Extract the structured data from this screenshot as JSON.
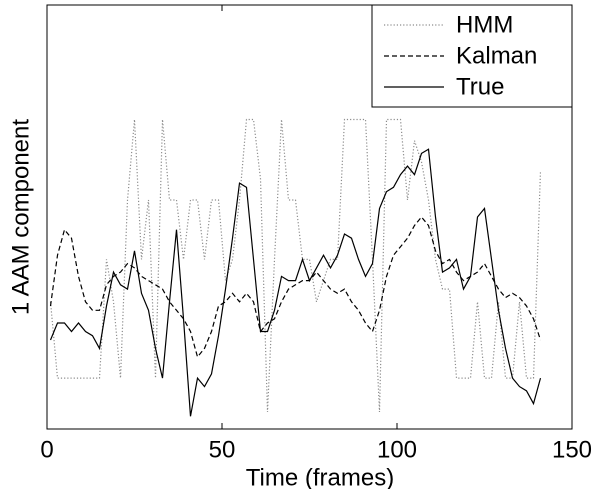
{
  "chart_data": {
    "type": "line",
    "xlabel": "Time (frames)",
    "ylabel": "1 AAM component",
    "x": [
      1,
      3,
      5,
      7,
      9,
      11,
      13,
      15,
      17,
      19,
      21,
      23,
      25,
      27,
      29,
      31,
      33,
      35,
      37,
      39,
      41,
      43,
      45,
      47,
      49,
      51,
      53,
      55,
      57,
      59,
      61,
      63,
      65,
      67,
      69,
      71,
      73,
      75,
      77,
      79,
      81,
      83,
      85,
      87,
      89,
      91,
      93,
      95,
      97,
      99,
      101,
      103,
      105,
      107,
      109,
      111,
      113,
      115,
      117,
      119,
      121,
      123,
      125,
      127,
      129,
      131,
      133,
      135,
      137,
      139,
      141
    ],
    "series": [
      {
        "name": "HMM",
        "color": "#8c8c8c",
        "dash": "dotted",
        "values": [
          30,
          12,
          12,
          12,
          12,
          12,
          12,
          12,
          40,
          30,
          12,
          54,
          73,
          40,
          54,
          12,
          73,
          54,
          54,
          40,
          54,
          54,
          40,
          54,
          54,
          35,
          40,
          54,
          73,
          73,
          59,
          4,
          40,
          73,
          54,
          54,
          40,
          40,
          30,
          35,
          40,
          40,
          73,
          73,
          73,
          73,
          40,
          4,
          73,
          73,
          73,
          54,
          68,
          63,
          54,
          40,
          33,
          33,
          12,
          12,
          12,
          30,
          12,
          12,
          30,
          12,
          12,
          30,
          12,
          12,
          61
        ]
      },
      {
        "name": "Kalman",
        "color": "#000000",
        "dash": "dashed",
        "values": [
          29,
          41,
          47,
          45,
          36,
          30,
          28,
          28,
          34,
          36,
          37,
          39,
          38,
          36,
          35,
          34,
          33,
          30,
          28,
          26,
          23,
          17,
          19,
          23,
          29,
          30,
          32,
          30,
          32,
          30,
          23,
          25,
          26,
          30,
          33,
          34,
          35,
          35,
          37,
          35,
          33,
          32,
          33,
          30,
          28,
          25,
          23,
          28,
          36,
          41,
          43,
          45,
          48,
          50,
          48,
          42,
          39,
          40,
          37,
          35,
          36,
          37,
          39,
          36,
          33,
          31,
          32,
          31,
          29,
          26,
          21
        ]
      },
      {
        "name": "True",
        "color": "#000000",
        "dash": "solid",
        "values": [
          21,
          25,
          25,
          23,
          25,
          23,
          22,
          19,
          29,
          37,
          34,
          33,
          42,
          32,
          28,
          19,
          12,
          30,
          47,
          26,
          3,
          12,
          10,
          13,
          22,
          33,
          45,
          58,
          57,
          40,
          23,
          23,
          28,
          36,
          35,
          35,
          40,
          35,
          38,
          41,
          38,
          41,
          46,
          45,
          40,
          36,
          39,
          52,
          56,
          57,
          60,
          62,
          60,
          65,
          66,
          50,
          37,
          38,
          40,
          33,
          36,
          50,
          52,
          40,
          28,
          19,
          12,
          10,
          9,
          6,
          12
        ]
      }
    ],
    "xlim": [
      0,
      150
    ],
    "xticks": [
      0,
      50,
      100,
      150
    ],
    "ylim": [
      0,
      100
    ],
    "legend": "upper right"
  }
}
